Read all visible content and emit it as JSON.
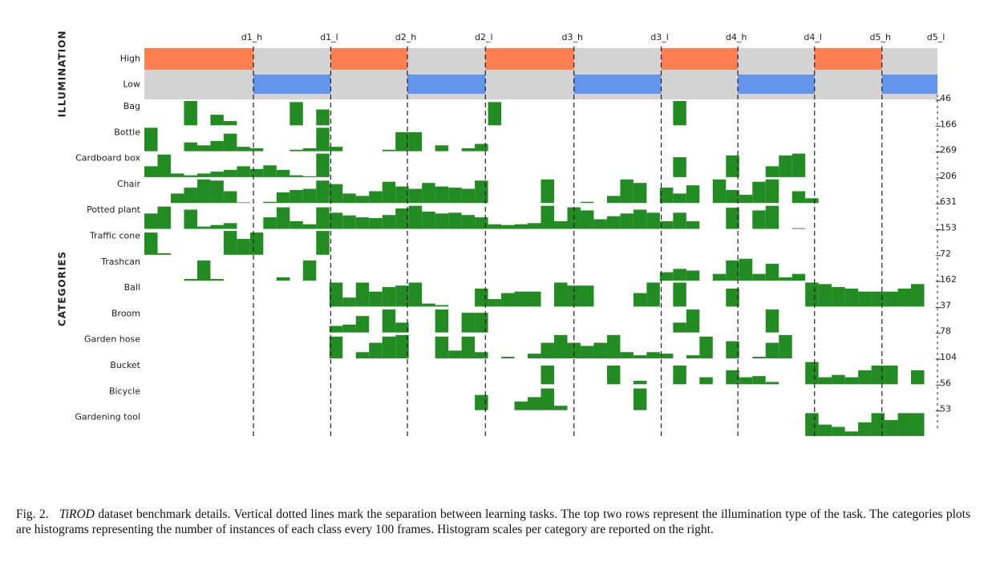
{
  "figure": {
    "illumination_title": "ILLUMINATION",
    "categories_title": "CATEGORIES",
    "illumination_levels": [
      "High",
      "Low"
    ],
    "colors": {
      "High": "#ff7f50",
      "Low": "#6495ed",
      "off": "#d3d3d3",
      "bar": "#228b22"
    },
    "tasks": [
      {
        "label": "d1_h",
        "illumination": "High"
      },
      {
        "label": "d1_l",
        "illumination": "Low"
      },
      {
        "label": "d2_h",
        "illumination": "High"
      },
      {
        "label": "d2_l",
        "illumination": "Low"
      },
      {
        "label": "d3_h",
        "illumination": "High"
      },
      {
        "label": "d3_l",
        "illumination": "Low"
      },
      {
        "label": "d4_h",
        "illumination": "High"
      },
      {
        "label": "d4_l",
        "illumination": "Low"
      },
      {
        "label": "d5_h",
        "illumination": "High"
      },
      {
        "label": "d5_l",
        "illumination": "Low"
      }
    ],
    "categories": [
      {
        "name": "Bag",
        "scale": 46,
        "values": [
          0,
          0,
          0,
          46,
          0,
          20,
          8,
          0,
          0,
          0,
          0,
          44,
          0,
          30,
          0,
          0,
          0,
          0,
          0,
          0,
          0,
          0,
          0,
          0,
          0,
          0,
          44,
          0,
          0,
          0,
          0,
          0,
          0,
          0,
          0,
          0,
          0,
          0,
          0,
          0,
          46,
          0,
          0,
          0,
          0,
          0,
          0,
          0,
          0,
          0,
          0,
          0,
          0,
          0,
          0,
          0,
          0,
          0,
          0,
          0
        ]
      },
      {
        "name": "Bottle",
        "scale": 166,
        "values": [
          160,
          0,
          0,
          60,
          40,
          70,
          120,
          30,
          20,
          0,
          0,
          10,
          20,
          160,
          30,
          0,
          0,
          0,
          10,
          130,
          130,
          0,
          40,
          0,
          20,
          50,
          0,
          0,
          0,
          0,
          0,
          0,
          0,
          0,
          0,
          0,
          0,
          0,
          0,
          0,
          0,
          0,
          0,
          0,
          0,
          0,
          0,
          0,
          0,
          0,
          0,
          0,
          0,
          0,
          0,
          0,
          0,
          0,
          0,
          0
        ]
      },
      {
        "name": "Cardboard box",
        "scale": 269,
        "values": [
          120,
          250,
          40,
          20,
          40,
          60,
          80,
          120,
          90,
          130,
          80,
          20,
          10,
          260,
          0,
          0,
          0,
          0,
          0,
          0,
          0,
          0,
          0,
          0,
          0,
          0,
          0,
          0,
          0,
          0,
          0,
          0,
          0,
          0,
          0,
          0,
          0,
          0,
          0,
          0,
          220,
          0,
          0,
          0,
          240,
          0,
          0,
          120,
          240,
          260,
          0,
          0,
          0,
          0,
          0,
          0,
          0,
          0,
          0,
          0
        ]
      },
      {
        "name": "Chair",
        "scale": 206,
        "values": [
          0,
          0,
          80,
          130,
          200,
          190,
          100,
          5,
          0,
          10,
          90,
          110,
          120,
          190,
          160,
          80,
          60,
          100,
          180,
          140,
          120,
          170,
          140,
          130,
          120,
          190,
          0,
          0,
          0,
          0,
          200,
          0,
          0,
          10,
          0,
          60,
          200,
          170,
          0,
          130,
          80,
          150,
          0,
          200,
          110,
          70,
          180,
          200,
          0,
          100,
          40,
          0,
          0,
          0,
          0,
          0,
          0,
          0,
          0,
          0
        ]
      },
      {
        "name": "Potted plant",
        "scale": 631,
        "values": [
          400,
          580,
          0,
          500,
          60,
          100,
          150,
          0,
          0,
          300,
          560,
          200,
          120,
          560,
          420,
          350,
          300,
          280,
          360,
          530,
          600,
          450,
          400,
          420,
          360,
          300,
          120,
          100,
          120,
          150,
          600,
          200,
          560,
          480,
          250,
          330,
          400,
          500,
          420,
          200,
          420,
          200,
          0,
          0,
          550,
          0,
          480,
          600,
          0,
          20,
          0,
          0,
          0,
          0,
          0,
          0,
          0,
          0,
          0,
          0
        ]
      },
      {
        "name": "Traffic cone",
        "scale": 153,
        "values": [
          140,
          10,
          0,
          0,
          0,
          0,
          150,
          100,
          140,
          0,
          0,
          0,
          0,
          150,
          0,
          0,
          0,
          0,
          0,
          0,
          0,
          0,
          0,
          0,
          0,
          0,
          0,
          0,
          0,
          0,
          0,
          0,
          0,
          0,
          0,
          0,
          0,
          0,
          0,
          0,
          0,
          0,
          0,
          0,
          0,
          0,
          0,
          0,
          0,
          0,
          0,
          0,
          0,
          0,
          0,
          0,
          0,
          0,
          0,
          0
        ]
      },
      {
        "name": "Trashcan",
        "scale": 72,
        "values": [
          0,
          0,
          0,
          5,
          60,
          5,
          0,
          0,
          0,
          0,
          10,
          0,
          60,
          0,
          0,
          0,
          0,
          0,
          0,
          0,
          0,
          0,
          0,
          0,
          0,
          0,
          0,
          0,
          0,
          0,
          0,
          0,
          0,
          0,
          0,
          0,
          0,
          0,
          0,
          25,
          35,
          30,
          0,
          20,
          60,
          65,
          20,
          50,
          10,
          20,
          0,
          0,
          0,
          0,
          0,
          0,
          0,
          0,
          0,
          0
        ]
      },
      {
        "name": "Ball",
        "scale": 162,
        "values": [
          0,
          0,
          0,
          0,
          0,
          0,
          0,
          0,
          0,
          0,
          0,
          0,
          0,
          0,
          160,
          60,
          160,
          100,
          130,
          140,
          160,
          20,
          10,
          0,
          0,
          120,
          50,
          90,
          100,
          100,
          0,
          160,
          140,
          140,
          0,
          0,
          0,
          90,
          160,
          0,
          160,
          0,
          0,
          0,
          120,
          0,
          0,
          0,
          0,
          0,
          160,
          150,
          130,
          120,
          100,
          100,
          100,
          120,
          150,
          0
        ]
      },
      {
        "name": "Broom",
        "scale": 37,
        "values": [
          0,
          0,
          0,
          0,
          0,
          0,
          0,
          0,
          0,
          0,
          0,
          0,
          0,
          0,
          10,
          12,
          25,
          0,
          35,
          15,
          0,
          0,
          35,
          0,
          30,
          30,
          0,
          0,
          0,
          0,
          0,
          0,
          0,
          0,
          0,
          0,
          0,
          0,
          0,
          0,
          15,
          35,
          0,
          0,
          0,
          0,
          0,
          35,
          0,
          0,
          0,
          0,
          0,
          0,
          0,
          0,
          0,
          0,
          0,
          0
        ]
      },
      {
        "name": "Garden hose",
        "scale": 78,
        "values": [
          0,
          0,
          0,
          0,
          0,
          0,
          0,
          0,
          0,
          0,
          0,
          0,
          0,
          0,
          70,
          0,
          20,
          50,
          70,
          75,
          0,
          0,
          70,
          25,
          70,
          20,
          0,
          5,
          0,
          15,
          50,
          75,
          50,
          40,
          50,
          75,
          20,
          10,
          20,
          15,
          0,
          10,
          70,
          0,
          55,
          0,
          5,
          50,
          75,
          0,
          0,
          0,
          0,
          0,
          0,
          0,
          0,
          0,
          0,
          0
        ]
      },
      {
        "name": "Bucket",
        "scale": 104,
        "values": [
          0,
          0,
          0,
          0,
          0,
          0,
          0,
          0,
          0,
          0,
          0,
          0,
          0,
          0,
          0,
          0,
          0,
          0,
          0,
          0,
          0,
          0,
          0,
          0,
          0,
          0,
          0,
          0,
          0,
          0,
          80,
          0,
          0,
          0,
          0,
          80,
          0,
          15,
          0,
          0,
          80,
          0,
          30,
          0,
          60,
          30,
          35,
          10,
          0,
          0,
          95,
          30,
          40,
          30,
          60,
          80,
          80,
          0,
          60,
          0
        ]
      },
      {
        "name": "Bicycle",
        "scale": 56,
        "values": [
          0,
          0,
          0,
          0,
          0,
          0,
          0,
          0,
          0,
          0,
          0,
          0,
          0,
          0,
          0,
          0,
          0,
          0,
          0,
          0,
          0,
          0,
          0,
          0,
          0,
          35,
          0,
          0,
          20,
          30,
          50,
          10,
          0,
          0,
          0,
          0,
          0,
          50,
          0,
          0,
          0,
          0,
          0,
          0,
          0,
          0,
          0,
          0,
          0,
          0,
          0,
          0,
          0,
          0,
          0,
          0,
          0,
          0,
          0,
          0
        ]
      },
      {
        "name": "Gardening tool",
        "scale": 53,
        "values": [
          0,
          0,
          0,
          0,
          0,
          0,
          0,
          0,
          0,
          0,
          0,
          0,
          0,
          0,
          0,
          0,
          0,
          0,
          0,
          0,
          0,
          0,
          0,
          0,
          0,
          0,
          0,
          0,
          0,
          0,
          0,
          0,
          0,
          0,
          0,
          0,
          0,
          0,
          0,
          0,
          0,
          0,
          0,
          0,
          0,
          0,
          0,
          0,
          0,
          0,
          50,
          25,
          20,
          10,
          30,
          50,
          35,
          50,
          50,
          0
        ]
      }
    ],
    "caption": {
      "label": "Fig. 2.",
      "emphasis": "TiROD",
      "text": "dataset benchmark details. Vertical dotted lines mark the separation between learning tasks. The top two rows represent the illumination type of the task. The categories plots are histograms representing the number of instances of each class every 100 frames. Histogram scales per category are reported on the right."
    }
  }
}
